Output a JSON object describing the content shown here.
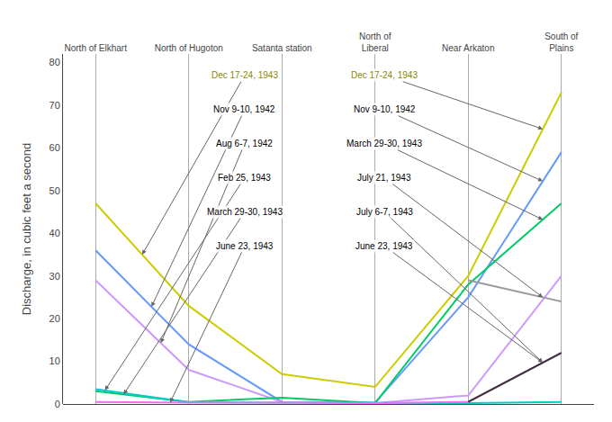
{
  "chart_data": {
    "type": "line",
    "categories": [
      "North of Elkhart",
      "North of Hugoton",
      "Satanta station",
      "North of\nLiberal",
      "Near Arkaton",
      "South of\nPlains"
    ],
    "series": [
      {
        "name": "Dec 17-24, 1943",
        "color": "#cccc00",
        "values": [
          47,
          23,
          7,
          4,
          30,
          73
        ]
      },
      {
        "name": "Nov 9-10, 1942",
        "color": "#6699ff",
        "values": [
          36,
          14,
          0.5,
          0.3,
          25,
          59
        ]
      },
      {
        "name": "Aug 6-7, 1942",
        "color": "#cc99ff",
        "values": [
          29,
          8,
          0.5,
          0.2,
          2,
          30
        ]
      },
      {
        "name": "March 29-30, 1943",
        "color": "#00cc66",
        "values": [
          3,
          0.5,
          1.5,
          0.2,
          28,
          47
        ]
      },
      {
        "name": "Feb 25, 1943",
        "color": "#00cccc",
        "values": [
          3.5,
          0.4,
          0.3,
          0.2,
          0.2,
          0.5
        ]
      },
      {
        "name": "June 23, 1943",
        "color": "#ff66ff",
        "values": [
          0.5,
          0.3,
          0.3,
          0.2,
          0.5,
          12
        ]
      },
      {
        "name": "July 21, 1943",
        "color": "#999999",
        "values": [
          null,
          null,
          null,
          null,
          29,
          24
        ]
      },
      {
        "name": "July 6-7, 1943",
        "color": "#333333",
        "values": [
          null,
          null,
          null,
          null,
          0.5,
          12
        ]
      }
    ],
    "ylabel": "Discharge, in cubic feet a second",
    "ylim": [
      0,
      82
    ],
    "yticks": [
      0,
      10,
      20,
      30,
      40,
      50,
      60,
      70,
      80
    ],
    "grid": "x",
    "annotations": [
      {
        "text": "Dec 17-24, 1943",
        "color": "#888800"
      },
      {
        "text": "Nov 9-10, 1942",
        "color": "#000000"
      },
      {
        "text": "Aug 6-7, 1942",
        "color": "#000000"
      },
      {
        "text": "Feb 25, 1943",
        "color": "#000000"
      },
      {
        "text": "March 29-30, 1943",
        "color": "#000000"
      },
      {
        "text": "June 23, 1943",
        "color": "#000000"
      },
      {
        "text": "Dec 17-24, 1943",
        "color": "#888800"
      },
      {
        "text": "Nov 9-10, 1942",
        "color": "#000000"
      },
      {
        "text": "March 29-30, 1943",
        "color": "#000000"
      },
      {
        "text": "July 21, 1943",
        "color": "#000000"
      },
      {
        "text": "July 6-7, 1943",
        "color": "#000000"
      },
      {
        "text": "June 23, 1943",
        "color": "#000000"
      }
    ]
  }
}
